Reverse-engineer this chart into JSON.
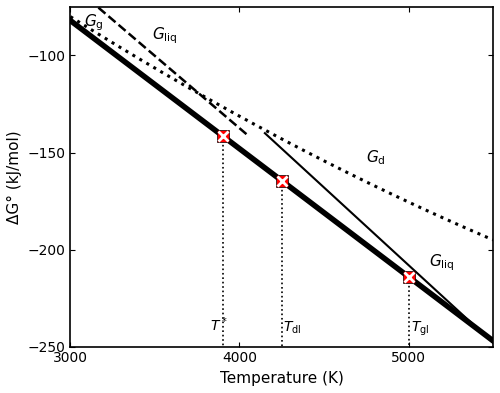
{
  "T_min": 3000,
  "T_max": 5500,
  "y_min": -250,
  "y_max": -75,
  "yticks": [
    -250,
    -200,
    -150,
    -100
  ],
  "xticks": [
    3000,
    4000,
    5000
  ],
  "xlabel": "Temperature (K)",
  "ylabel": "ΔG° (kJ/mol)",
  "T_star": 3900,
  "T_dl": 4250,
  "T_gl": 5000,
  "red_color": "#FF0000",
  "Gg_T3000": -82.0,
  "Gg_T5500": -247.0,
  "Gliq_dash_T3000": -63.0,
  "Gliq_dash_T3900": -130.0,
  "Gd_T3000": -80.0,
  "Gd_T4250": -143.0,
  "Gd_T5500": -195.0,
  "Gliq_solid_T4250": -148.0,
  "Gliq_solid_T5500": -248.0
}
